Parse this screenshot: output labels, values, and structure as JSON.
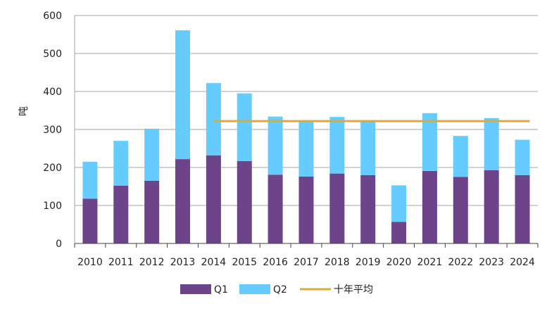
{
  "chart_data": {
    "type": "bar",
    "stacked": true,
    "categories": [
      "2010",
      "2011",
      "2012",
      "2013",
      "2014",
      "2015",
      "2016",
      "2017",
      "2018",
      "2019",
      "2020",
      "2021",
      "2022",
      "2023",
      "2024"
    ],
    "series": [
      {
        "name": "Q1",
        "values": [
          118,
          152,
          165,
          222,
          232,
          217,
          181,
          176,
          184,
          180,
          57,
          191,
          175,
          193,
          180
        ],
        "color": "#6d4389"
      },
      {
        "name": "Q2",
        "values": [
          97,
          118,
          137,
          339,
          190,
          178,
          153,
          146,
          149,
          140,
          96,
          152,
          108,
          137,
          93
        ],
        "color": "#66ccff"
      }
    ],
    "average_line": {
      "name": "十年平均",
      "value": 322,
      "from": "2014",
      "to": "2024",
      "color": "#d9ac3a"
    },
    "ylabel": "吨",
    "xlabel": "",
    "ylim": [
      0,
      600
    ],
    "yticks": [
      0,
      100,
      200,
      300,
      400,
      500,
      600
    ],
    "grid": "horizontal",
    "legend_position": "bottom"
  }
}
